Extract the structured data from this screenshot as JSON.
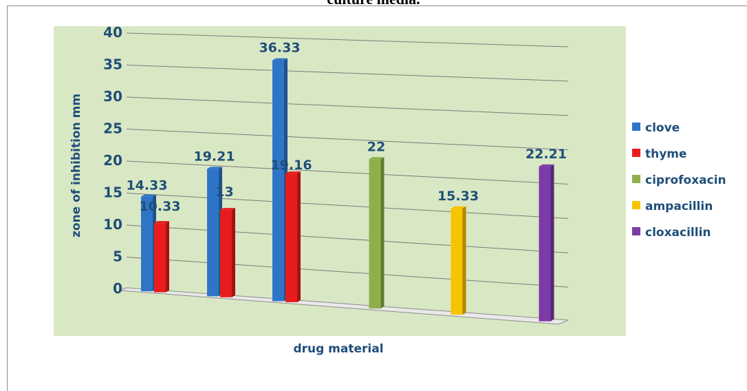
{
  "caption": "culture media.",
  "chart_data": {
    "type": "bar",
    "ylabel": "zone of inhibition  mm",
    "xlabel": "drug material",
    "ylim": [
      0,
      40
    ],
    "yticks": [
      0,
      5,
      10,
      15,
      20,
      25,
      30,
      35,
      40
    ],
    "grid": true,
    "legend_position": "right",
    "groups": [
      {
        "bars": [
          {
            "series": "clove",
            "value": 14.33,
            "label": "14.33"
          },
          {
            "series": "thyme",
            "value": 10.33,
            "label": "10.33"
          }
        ]
      },
      {
        "bars": [
          {
            "series": "clove",
            "value": 19.21,
            "label": "19.21"
          },
          {
            "series": "thyme",
            "value": 13,
            "label": "13"
          }
        ]
      },
      {
        "bars": [
          {
            "series": "clove",
            "value": 36.33,
            "label": "36.33"
          },
          {
            "series": "thyme",
            "value": 19.16,
            "label": "19.16"
          }
        ]
      },
      {
        "bars": [
          {
            "series": "ciprofoxacin",
            "value": 22,
            "label": "22"
          }
        ]
      },
      {
        "bars": [
          {
            "series": "ampacillin",
            "value": 15.33,
            "label": "15.33"
          }
        ]
      },
      {
        "bars": [
          {
            "series": "cloxacillin",
            "value": 22.21,
            "label": "22.21"
          }
        ]
      }
    ],
    "series": [
      {
        "name": "clove",
        "color": "#2e75c8"
      },
      {
        "name": "thyme",
        "color": "#e81c1c"
      },
      {
        "name": "ciprofoxacin",
        "color": "#8db04a"
      },
      {
        "name": "ampacillin",
        "color": "#f7c400"
      },
      {
        "name": "cloxacillin",
        "color": "#7b3aa6"
      }
    ],
    "plot_background": "#d9e8c4"
  }
}
